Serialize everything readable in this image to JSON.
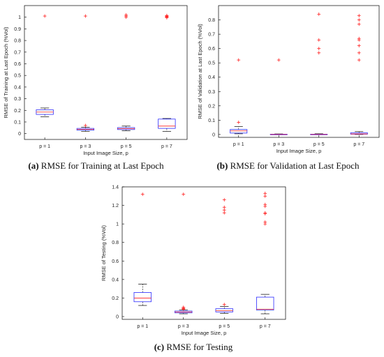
{
  "chart_data": [
    {
      "type": "box",
      "panel_letter": "(a)",
      "caption": "RMSE for Training at Last Epoch",
      "xlabel": "Input Image Size, p",
      "ylabel": "RMSE of Training at Last Epoch (%Vol)",
      "categories": [
        "p = 1",
        "p = 3",
        "p = 5",
        "p = 7"
      ],
      "ylim": [
        -0.05,
        1.1
      ],
      "yticks": [
        0,
        0.1,
        0.2,
        0.3,
        0.4,
        0.5,
        0.6,
        0.7,
        0.8,
        0.9,
        1
      ],
      "ytick_labels": [
        "0",
        "0.1",
        "0.2",
        "0.3",
        "0.4",
        "0.5",
        "0.6",
        "0.7",
        "0.8",
        "0.9",
        "1"
      ],
      "boxes": [
        {
          "q1": 0.165,
          "median": 0.185,
          "q3": 0.205,
          "whisker_low": 0.145,
          "whisker_high": 0.22,
          "outliers": [
            1.01
          ]
        },
        {
          "q1": 0.03,
          "median": 0.037,
          "q3": 0.045,
          "whisker_low": 0.02,
          "whisker_high": 0.055,
          "outliers": [
            1.01,
            0.07
          ]
        },
        {
          "q1": 0.035,
          "median": 0.043,
          "q3": 0.052,
          "whisker_low": 0.025,
          "whisker_high": 0.065,
          "outliers": [
            1.02,
            1.01,
            1.0
          ]
        },
        {
          "q1": 0.045,
          "median": 0.065,
          "q3": 0.125,
          "whisker_low": 0.02,
          "whisker_high": 0.13,
          "outliers": [
            1.015,
            1.01,
            1.005,
            1.0,
            0.995
          ]
        }
      ]
    },
    {
      "type": "box",
      "panel_letter": "(b)",
      "caption": "RMSE for Validation at Last Epoch",
      "xlabel": "Input Image Size, p",
      "ylabel": "RMSE of Validation at Last Epoch (%Vol)",
      "categories": [
        "p = 1",
        "p = 3",
        "p = 5",
        "p = 7"
      ],
      "ylim": [
        -0.02,
        0.9
      ],
      "yticks": [
        0,
        0.1,
        0.2,
        0.3,
        0.4,
        0.5,
        0.6,
        0.7,
        0.8
      ],
      "ytick_labels": [
        "0",
        "0.1",
        "0.2",
        "0.3",
        "0.4",
        "0.5",
        "0.6",
        "0.7",
        "0.8"
      ],
      "boxes": [
        {
          "q1": 0.01,
          "median": 0.025,
          "q3": 0.035,
          "whisker_low": 0.005,
          "whisker_high": 0.055,
          "outliers": [
            0.52,
            0.085
          ]
        },
        {
          "q1": 0.0,
          "median": 0.0,
          "q3": 0.002,
          "whisker_low": 0.0,
          "whisker_high": 0.004,
          "outliers": [
            0.52
          ]
        },
        {
          "q1": 0.0,
          "median": 0.0,
          "q3": 0.002,
          "whisker_low": 0.0,
          "whisker_high": 0.005,
          "outliers": [
            0.84,
            0.66,
            0.6,
            0.57
          ]
        },
        {
          "q1": 0.002,
          "median": 0.004,
          "q3": 0.012,
          "whisker_low": 0.0,
          "whisker_high": 0.02,
          "outliers": [
            0.83,
            0.8,
            0.77,
            0.67,
            0.66,
            0.62,
            0.57,
            0.52
          ]
        }
      ]
    },
    {
      "type": "box",
      "panel_letter": "(c)",
      "caption": "RMSE for Testing",
      "xlabel": "Input Image Size, p",
      "ylabel": "RMSE of Testing (%Vol)",
      "categories": [
        "p = 1",
        "p = 3",
        "p = 5",
        "p = 7"
      ],
      "ylim": [
        -0.03,
        1.4
      ],
      "yticks": [
        0,
        0.2,
        0.4,
        0.6,
        0.8,
        1,
        1.2,
        1.4
      ],
      "ytick_labels": [
        "0",
        "0.2",
        "0.4",
        "0.6",
        "0.8",
        "1",
        "1.2",
        "1.4"
      ],
      "boxes": [
        {
          "q1": 0.16,
          "median": 0.2,
          "q3": 0.26,
          "whisker_low": 0.12,
          "whisker_high": 0.35,
          "outliers": [
            1.32
          ]
        },
        {
          "q1": 0.04,
          "median": 0.05,
          "q3": 0.06,
          "whisker_low": 0.03,
          "whisker_high": 0.07,
          "outliers": [
            1.32,
            0.1,
            0.09,
            0.085,
            0.08
          ]
        },
        {
          "q1": 0.05,
          "median": 0.065,
          "q3": 0.085,
          "whisker_low": 0.035,
          "whisker_high": 0.11,
          "outliers": [
            1.26,
            1.18,
            1.15,
            1.12,
            0.13
          ]
        },
        {
          "q1": 0.07,
          "median": 0.08,
          "q3": 0.21,
          "whisker_low": 0.03,
          "whisker_high": 0.24,
          "outliers": [
            1.33,
            1.3,
            1.21,
            1.19,
            1.12,
            1.11,
            1.02,
            1.0
          ]
        }
      ]
    }
  ],
  "colors": {
    "box": "#2b2bff",
    "median": "#ff2020",
    "outlier": "#ff2020",
    "whisker": "#000000",
    "axis": "#000000"
  }
}
